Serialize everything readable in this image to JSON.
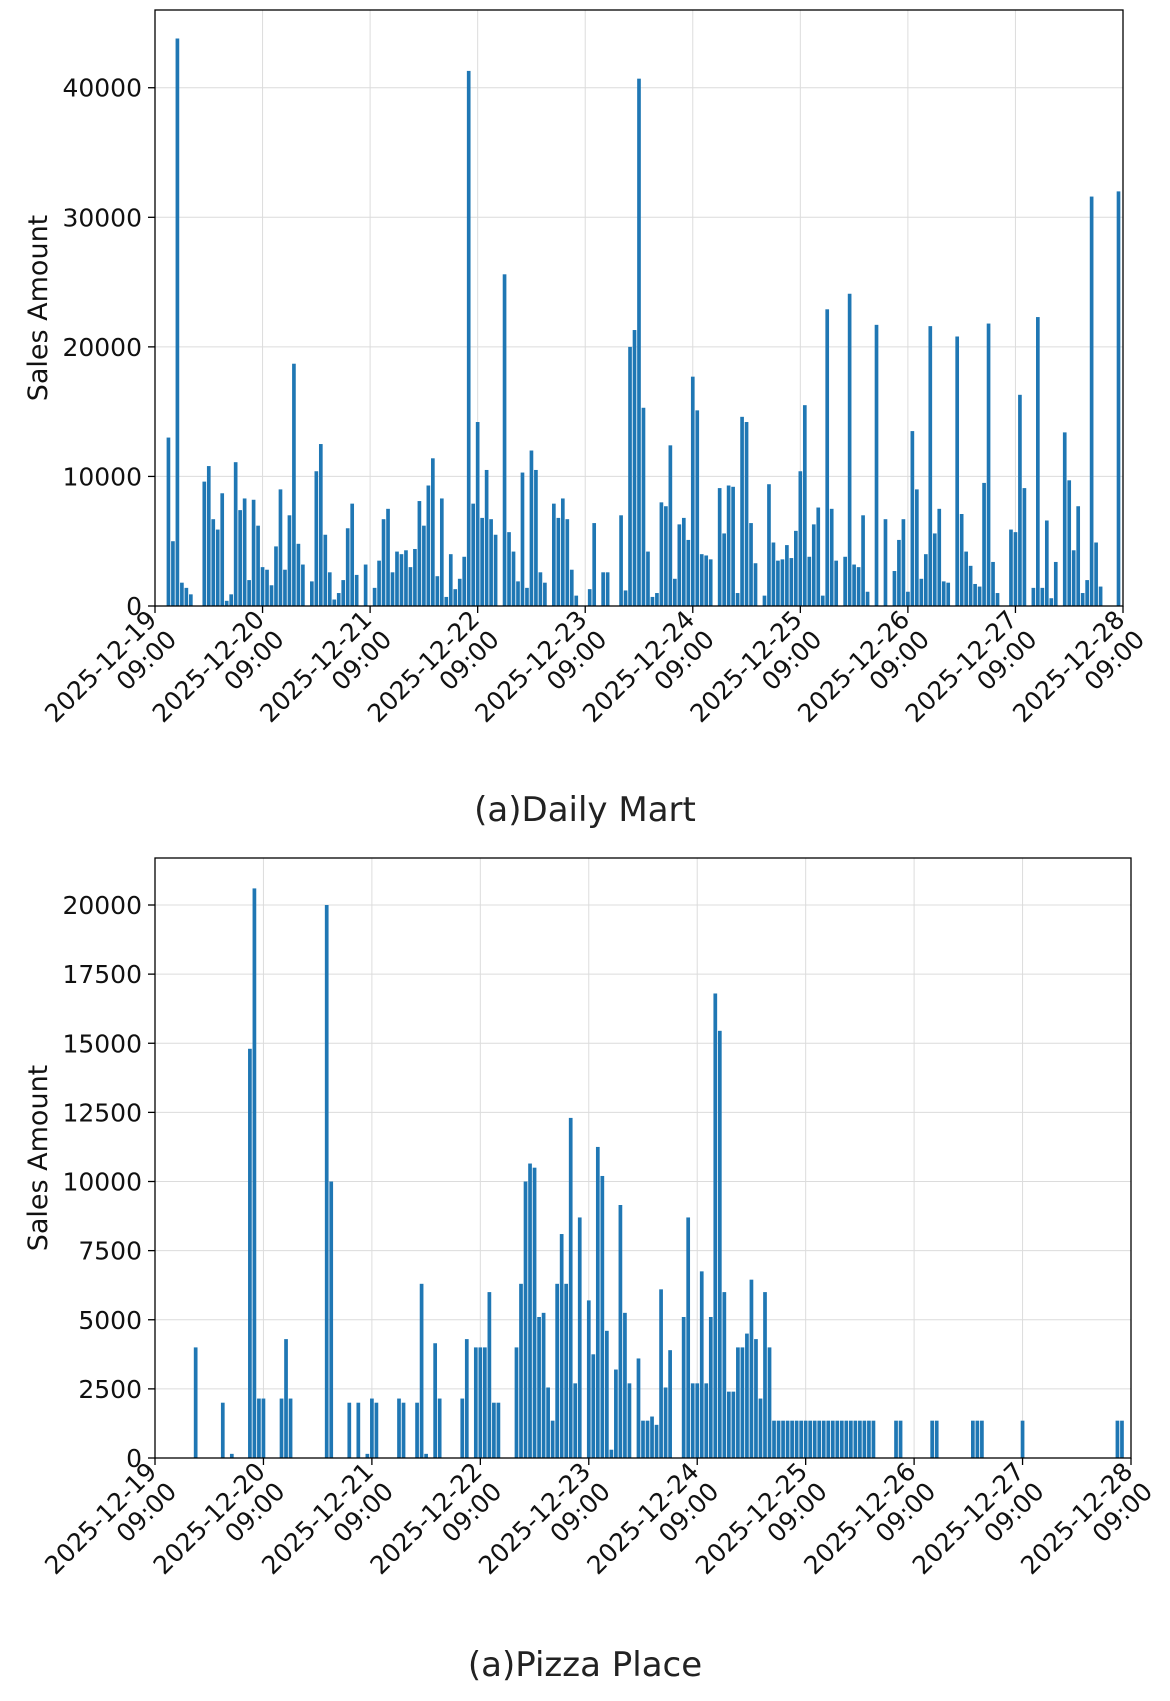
{
  "chart_data": [
    {
      "type": "bar",
      "caption": "(a)Daily Mart",
      "ylabel": "Sales Amount",
      "xlabel": "",
      "ylim": [
        0,
        46000
      ],
      "yticks": [
        0,
        10000,
        20000,
        30000,
        40000
      ],
      "xlim": [
        "2025-12-19 09:00",
        "2025-12-28 09:00"
      ],
      "xtick_labels": [
        "2025-12-19\n09:00",
        "2025-12-20\n09:00",
        "2025-12-21\n09:00",
        "2025-12-22\n09:00",
        "2025-12-23\n09:00",
        "2025-12-24\n09:00",
        "2025-12-25\n09:00",
        "2025-12-26\n09:00",
        "2025-12-27\n09:00",
        "2025-12-28\n09:00"
      ],
      "bar_color": "#1f77b4",
      "grid": true,
      "series": [
        {
          "x": [
            "2025-12-19 09:00",
            "2025-12-19 10:00",
            "2025-12-19 11:00",
            "2025-12-19 12:00",
            "2025-12-19 13:00",
            "2025-12-19 14:00",
            "2025-12-19 15:00",
            "2025-12-19 16:00",
            "2025-12-19 17:00",
            "2025-12-19 18:00",
            "2025-12-19 19:00",
            "2025-12-19 20:00",
            "2025-12-19 21:00",
            "2025-12-19 22:00",
            "2025-12-19 23:00",
            "2025-12-20 00:00",
            "2025-12-20 01:00",
            "2025-12-20 02:00",
            "2025-12-20 03:00",
            "2025-12-20 04:00",
            "2025-12-20 05:00",
            "2025-12-20 06:00",
            "2025-12-20 07:00",
            "2025-12-20 08:00",
            "2025-12-20 09:00",
            "2025-12-20 10:00",
            "2025-12-20 11:00",
            "2025-12-20 12:00",
            "2025-12-20 13:00",
            "2025-12-20 14:00",
            "2025-12-20 15:00",
            "2025-12-20 16:00",
            "2025-12-20 17:00",
            "2025-12-20 18:00",
            "2025-12-20 19:00",
            "2025-12-20 20:00",
            "2025-12-20 21:00",
            "2025-12-20 22:00",
            "2025-12-20 23:00",
            "2025-12-21 00:00",
            "2025-12-21 01:00",
            "2025-12-21 02:00",
            "2025-12-21 03:00",
            "2025-12-21 04:00",
            "2025-12-21 05:00",
            "2025-12-21 06:00",
            "2025-12-21 07:00",
            "2025-12-21 08:00",
            "2025-12-21 09:00",
            "2025-12-21 10:00",
            "2025-12-21 11:00",
            "2025-12-21 12:00",
            "2025-12-21 13:00",
            "2025-12-21 14:00",
            "2025-12-21 15:00",
            "2025-12-21 16:00",
            "2025-12-21 17:00",
            "2025-12-21 18:00",
            "2025-12-21 19:00",
            "2025-12-21 20:00",
            "2025-12-21 21:00",
            "2025-12-21 22:00",
            "2025-12-21 23:00",
            "2025-12-22 00:00",
            "2025-12-22 01:00",
            "2025-12-22 02:00",
            "2025-12-22 03:00",
            "2025-12-22 04:00",
            "2025-12-22 05:00",
            "2025-12-22 06:00",
            "2025-12-22 07:00",
            "2025-12-22 08:00",
            "2025-12-22 09:00",
            "2025-12-22 10:00",
            "2025-12-22 11:00",
            "2025-12-22 12:00",
            "2025-12-22 13:00",
            "2025-12-22 14:00",
            "2025-12-22 15:00",
            "2025-12-22 16:00",
            "2025-12-22 17:00",
            "2025-12-22 18:00",
            "2025-12-22 19:00",
            "2025-12-22 20:00",
            "2025-12-22 21:00",
            "2025-12-22 22:00",
            "2025-12-22 23:00",
            "2025-12-23 00:00",
            "2025-12-23 01:00",
            "2025-12-23 02:00",
            "2025-12-23 03:00",
            "2025-12-23 04:00",
            "2025-12-23 05:00",
            "2025-12-23 06:00",
            "2025-12-23 07:00",
            "2025-12-23 08:00",
            "2025-12-23 09:00",
            "2025-12-23 10:00",
            "2025-12-23 11:00",
            "2025-12-23 12:00",
            "2025-12-23 13:00",
            "2025-12-23 14:00",
            "2025-12-23 15:00",
            "2025-12-23 16:00",
            "2025-12-23 17:00",
            "2025-12-23 18:00",
            "2025-12-23 19:00",
            "2025-12-23 20:00",
            "2025-12-23 21:00",
            "2025-12-23 22:00",
            "2025-12-23 23:00",
            "2025-12-24 00:00",
            "2025-12-24 01:00",
            "2025-12-24 02:00",
            "2025-12-24 03:00",
            "2025-12-24 04:00",
            "2025-12-24 05:00",
            "2025-12-24 06:00",
            "2025-12-24 07:00",
            "2025-12-24 08:00",
            "2025-12-24 09:00",
            "2025-12-24 10:00",
            "2025-12-24 11:00",
            "2025-12-24 12:00",
            "2025-12-24 13:00",
            "2025-12-24 14:00",
            "2025-12-24 15:00",
            "2025-12-24 16:00",
            "2025-12-24 17:00",
            "2025-12-24 18:00",
            "2025-12-24 19:00",
            "2025-12-24 20:00",
            "2025-12-24 21:00",
            "2025-12-24 22:00",
            "2025-12-24 23:00",
            "2025-12-25 00:00",
            "2025-12-25 01:00",
            "2025-12-25 02:00",
            "2025-12-25 03:00",
            "2025-12-25 04:00",
            "2025-12-25 05:00",
            "2025-12-25 06:00",
            "2025-12-25 07:00",
            "2025-12-25 08:00",
            "2025-12-25 09:00",
            "2025-12-25 10:00",
            "2025-12-25 11:00",
            "2025-12-25 12:00",
            "2025-12-25 13:00",
            "2025-12-25 14:00",
            "2025-12-25 15:00",
            "2025-12-25 16:00",
            "2025-12-25 17:00",
            "2025-12-25 18:00",
            "2025-12-25 19:00",
            "2025-12-25 20:00",
            "2025-12-25 21:00",
            "2025-12-25 22:00",
            "2025-12-25 23:00",
            "2025-12-26 00:00",
            "2025-12-26 01:00",
            "2025-12-26 02:00",
            "2025-12-26 03:00",
            "2025-12-26 04:00",
            "2025-12-26 05:00",
            "2025-12-26 06:00",
            "2025-12-26 07:00",
            "2025-12-26 08:00",
            "2025-12-26 09:00",
            "2025-12-26 10:00",
            "2025-12-26 11:00",
            "2025-12-26 12:00",
            "2025-12-26 13:00",
            "2025-12-26 14:00",
            "2025-12-26 15:00",
            "2025-12-26 16:00",
            "2025-12-26 17:00",
            "2025-12-26 18:00",
            "2025-12-26 19:00",
            "2025-12-26 20:00",
            "2025-12-26 21:00",
            "2025-12-26 22:00",
            "2025-12-26 23:00",
            "2025-12-27 00:00",
            "2025-12-27 01:00",
            "2025-12-27 02:00",
            "2025-12-27 03:00",
            "2025-12-27 04:00",
            "2025-12-27 05:00",
            "2025-12-27 06:00",
            "2025-12-27 07:00",
            "2025-12-27 08:00",
            "2025-12-27 09:00",
            "2025-12-27 10:00",
            "2025-12-27 11:00",
            "2025-12-27 12:00",
            "2025-12-27 13:00",
            "2025-12-27 14:00",
            "2025-12-27 15:00",
            "2025-12-27 16:00",
            "2025-12-27 17:00",
            "2025-12-27 18:00",
            "2025-12-27 19:00",
            "2025-12-27 20:00",
            "2025-12-27 21:00",
            "2025-12-27 22:00",
            "2025-12-27 23:00",
            "2025-12-28 00:00",
            "2025-12-28 01:00",
            "2025-12-28 02:00",
            "2025-12-28 03:00",
            "2025-12-28 04:00",
            "2025-12-28 05:00",
            "2025-12-28 06:00",
            "2025-12-28 07:00",
            "2025-12-28 08:00"
          ],
          "values": [
            0,
            0,
            0,
            13000,
            5000,
            43800,
            1800,
            1400,
            900,
            0,
            0,
            9600,
            10800,
            6700,
            5900,
            8700,
            400,
            900,
            11100,
            7400,
            8300,
            2000,
            8200,
            6200,
            3000,
            2800,
            1600,
            4600,
            9000,
            2800,
            7000,
            18700,
            4800,
            3200,
            0,
            1900,
            10400,
            12500,
            5500,
            2600,
            500,
            1000,
            2000,
            6000,
            7900,
            2400,
            0,
            3200,
            0,
            1400,
            3500,
            6700,
            7500,
            2600,
            4200,
            4000,
            4300,
            3000,
            4400,
            8100,
            6200,
            9300,
            11400,
            2300,
            8300,
            700,
            4000,
            1300,
            2100,
            3800,
            41300,
            7900,
            14200,
            6800,
            10500,
            6700,
            5500,
            0,
            25600,
            5700,
            4200,
            1900,
            10300,
            1400,
            12000,
            10500,
            2600,
            1800,
            0,
            7900,
            6800,
            8300,
            6700,
            2800,
            800,
            0,
            0,
            1300,
            6400,
            0,
            2600,
            2600,
            0,
            0,
            7000,
            1200,
            20000,
            21300,
            40700,
            15300,
            4200,
            700,
            1000,
            8000,
            7700,
            12400,
            2100,
            6300,
            6800,
            5100,
            17700,
            15100,
            4000,
            3900,
            3600,
            0,
            9100,
            5600,
            9300,
            9200,
            1000,
            14600,
            14200,
            6400,
            3300,
            0,
            800,
            9400,
            4900,
            3500,
            3600,
            4700,
            3700,
            5800,
            10400,
            15500,
            3800,
            6300,
            7600,
            800,
            22900,
            7500,
            3500,
            0,
            3800,
            24100,
            3200,
            3000,
            7000,
            1100,
            0,
            21700,
            0,
            6700,
            0,
            2700,
            5100,
            6700,
            1100,
            13500,
            9000,
            2100,
            4000,
            21600,
            5600,
            7500,
            1900,
            1800,
            0,
            20800,
            7100,
            4200,
            3100,
            1700,
            1500,
            9500,
            21800,
            3400,
            1000,
            0,
            0,
            5900,
            5700,
            16300,
            9100,
            0,
            1400,
            22300,
            1400,
            6600,
            600,
            3400,
            0,
            13400,
            9700,
            4300,
            7700,
            1000,
            2000,
            31600,
            4900,
            1500,
            0,
            0,
            0,
            32000
          ]
        }
      ]
    },
    {
      "type": "bar",
      "caption": "(a)Pizza Place",
      "ylabel": "Sales Amount",
      "xlabel": "",
      "ylim": [
        0,
        21700
      ],
      "yticks": [
        0,
        2500,
        5000,
        7500,
        10000,
        12500,
        15000,
        17500,
        20000
      ],
      "xlim": [
        "2025-12-19 09:00",
        "2025-12-28 09:00"
      ],
      "xtick_labels": [
        "2025-12-19\n09:00",
        "2025-12-20\n09:00",
        "2025-12-21\n09:00",
        "2025-12-22\n09:00",
        "2025-12-23\n09:00",
        "2025-12-24\n09:00",
        "2025-12-25\n09:00",
        "2025-12-26\n09:00",
        "2025-12-27\n09:00",
        "2025-12-28\n09:00"
      ],
      "bar_color": "#1f77b4",
      "grid": true,
      "series": [
        {
          "x": [
            "2025-12-19 18:00",
            "2025-12-20 00:00",
            "2025-12-20 02:00",
            "2025-12-20 06:00",
            "2025-12-20 07:00",
            "2025-12-20 08:00",
            "2025-12-20 09:00",
            "2025-12-20 13:00",
            "2025-12-20 14:00",
            "2025-12-20 15:00",
            "2025-12-20 23:00",
            "2025-12-21 00:00",
            "2025-12-21 04:00",
            "2025-12-21 06:00",
            "2025-12-21 08:00",
            "2025-12-21 09:00",
            "2025-12-21 10:00",
            "2025-12-21 15:00",
            "2025-12-21 16:00",
            "2025-12-21 19:00",
            "2025-12-21 20:00",
            "2025-12-21 21:00",
            "2025-12-21 23:00",
            "2025-12-22 00:00",
            "2025-12-22 05:00",
            "2025-12-22 06:00",
            "2025-12-22 08:00",
            "2025-12-22 09:00",
            "2025-12-22 10:00",
            "2025-12-22 11:00",
            "2025-12-22 12:00",
            "2025-12-22 13:00",
            "2025-12-22 17:00",
            "2025-12-22 18:00",
            "2025-12-22 19:00",
            "2025-12-22 20:00",
            "2025-12-22 21:00",
            "2025-12-22 22:00",
            "2025-12-22 23:00",
            "2025-12-23 00:00",
            "2025-12-23 01:00",
            "2025-12-23 02:00",
            "2025-12-23 03:00",
            "2025-12-23 04:00",
            "2025-12-23 05:00",
            "2025-12-23 06:00",
            "2025-12-23 07:00",
            "2025-12-23 09:00",
            "2025-12-23 10:00",
            "2025-12-23 11:00",
            "2025-12-23 12:00",
            "2025-12-23 13:00",
            "2025-12-23 14:00",
            "2025-12-23 15:00",
            "2025-12-23 16:00",
            "2025-12-23 17:00",
            "2025-12-23 18:00",
            "2025-12-23 20:00",
            "2025-12-23 21:00",
            "2025-12-23 22:00",
            "2025-12-23 23:00",
            "2025-12-24 00:00",
            "2025-12-24 01:00",
            "2025-12-24 02:00",
            "2025-12-24 03:00",
            "2025-12-24 06:00",
            "2025-12-24 07:00",
            "2025-12-24 08:00",
            "2025-12-24 09:00",
            "2025-12-24 10:00",
            "2025-12-24 11:00",
            "2025-12-24 12:00",
            "2025-12-24 13:00",
            "2025-12-24 14:00",
            "2025-12-24 15:00",
            "2025-12-24 16:00",
            "2025-12-24 17:00",
            "2025-12-24 18:00",
            "2025-12-24 19:00",
            "2025-12-24 20:00",
            "2025-12-24 21:00",
            "2025-12-24 22:00",
            "2025-12-24 23:00",
            "2025-12-25 00:00",
            "2025-12-25 01:00",
            "2025-12-25 02:00",
            "2025-12-25 03:00",
            "2025-12-25 04:00",
            "2025-12-25 05:00",
            "2025-12-25 06:00",
            "2025-12-25 07:00",
            "2025-12-25 08:00",
            "2025-12-25 09:00",
            "2025-12-25 10:00",
            "2025-12-25 11:00",
            "2025-12-25 12:00",
            "2025-12-25 13:00",
            "2025-12-25 14:00",
            "2025-12-25 15:00",
            "2025-12-25 16:00",
            "2025-12-25 17:00",
            "2025-12-25 18:00",
            "2025-12-25 19:00",
            "2025-12-25 20:00",
            "2025-12-25 21:00",
            "2025-12-25 22:00",
            "2025-12-25 23:00",
            "2025-12-26 00:00",
            "2025-12-26 05:00",
            "2025-12-26 06:00",
            "2025-12-26 13:00",
            "2025-12-26 14:00",
            "2025-12-26 22:00",
            "2025-12-26 23:00",
            "2025-12-27 00:00",
            "2025-12-27 09:00",
            "2025-12-28 06:00",
            "2025-12-28 07:00"
          ],
          "values": [
            4000,
            2000,
            150,
            14800,
            20600,
            2150,
            2150,
            2150,
            4300,
            2150,
            20000,
            10000,
            2000,
            2000,
            150,
            2150,
            2000,
            2150,
            2000,
            2000,
            6300,
            150,
            4150,
            2150,
            2150,
            4300,
            4000,
            4000,
            4000,
            6000,
            2000,
            2000,
            4000,
            6300,
            10000,
            10650,
            10500,
            5100,
            5250,
            2550,
            1350,
            6300,
            8100,
            6300,
            12300,
            2700,
            8700,
            5700,
            3750,
            11250,
            10200,
            4600,
            300,
            3200,
            9150,
            5250,
            2700,
            3600,
            1350,
            1350,
            1500,
            1200,
            6100,
            2550,
            3900,
            5100,
            8700,
            2700,
            2700,
            6750,
            2700,
            5100,
            16800,
            15450,
            6000,
            2400,
            2400,
            4000,
            4000,
            4500,
            6450,
            4300,
            2150,
            6000,
            4000,
            1350,
            1350,
            1350,
            1350,
            1350,
            1350,
            1350,
            1350,
            1350,
            1350,
            1350,
            1350,
            1350,
            1350,
            1350,
            1350,
            1350,
            1350,
            1350,
            1350,
            1350,
            1350,
            1350,
            1350,
            1350,
            1350,
            1350,
            1350,
            1350,
            1350,
            1350,
            1350,
            1350
          ]
        }
      ]
    }
  ]
}
